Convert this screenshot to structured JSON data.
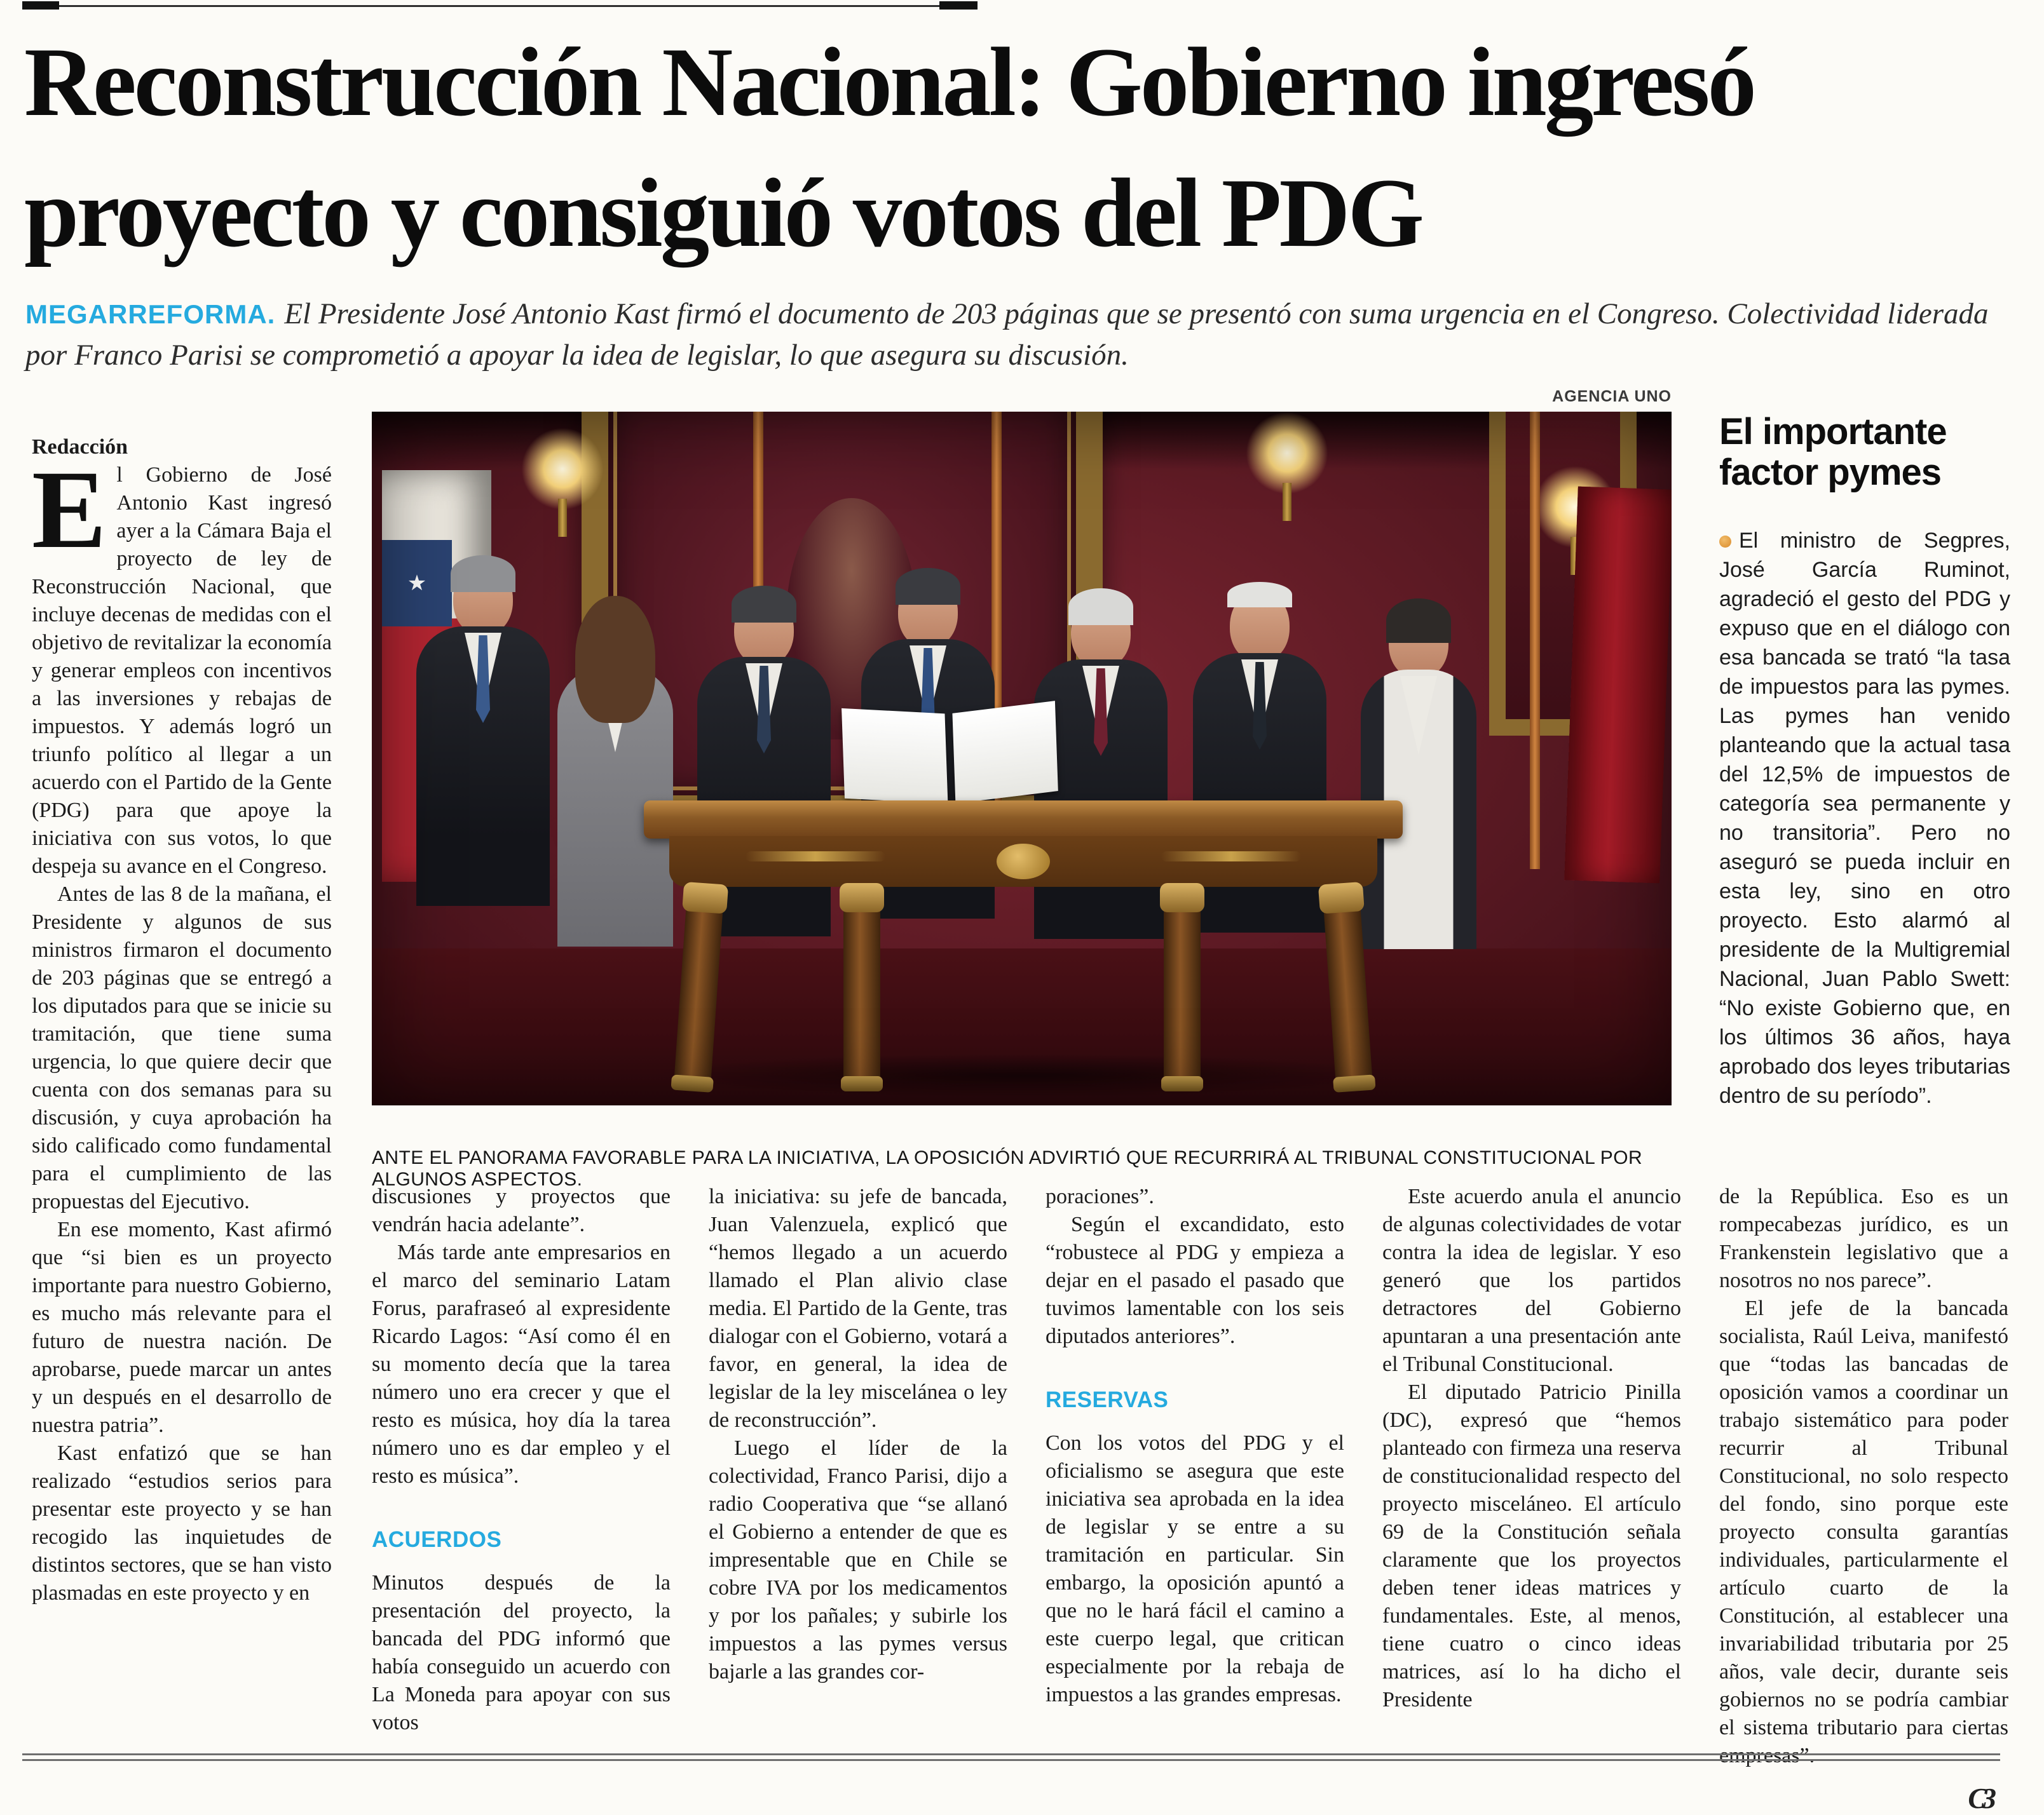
{
  "headline": {
    "text": "Reconstrucción Nacional: Gobierno ingresó proyecto y consiguió votos del PDG"
  },
  "standfirst": {
    "kicker": "MEGARREFORMA.",
    "text": "El Presidente José Antonio Kast firmó el documento de 203 páginas que se presentó con suma urgencia en el Congreso. Colectividad liderada por Franco Parisi se comprometió a apoyar la idea de legislar, lo que asegura su discusión."
  },
  "article": {
    "byline": "Redacción",
    "col1": {
      "dropcap": "E",
      "p1": "l Gobierno de José Antonio Kast ingresó ayer a la Cámara Baja el proyecto de ley de Reconstrucción Nacional, que incluye decenas de medidas con el objetivo de revitalizar la economía y generar empleos con incentivos a las inversiones y rebajas de impuestos. Y además logró un triunfo político al llegar a un acuerdo con el Partido de la Gente (PDG) para que apoye la iniciativa con sus votos, lo que despeja su avance en el Congreso.",
      "p2": "Antes de las 8 de la mañana, el Presidente y algunos de sus ministros firmaron el documento de 203 páginas que se entregó a los diputados para que se inicie su tramitación, que tiene suma urgencia, lo que quiere decir que cuenta con dos semanas para su discusión, y cuya aprobación ha sido calificado como fundamental para el cumplimiento de las propuestas del Ejecutivo.",
      "p3": "En ese momento, Kast afirmó que “si bien es un proyecto importante para nuestro Gobierno, es mucho más relevante para el futuro de nuestra nación. De aprobarse, puede marcar un antes y un después en el desarrollo de nuestra patria”.",
      "p4": "Kast enfatizó que se han realizado “estudios serios para presentar este proyecto y se han recogido las inquietudes de distintos sectores, que se han visto plasmadas en este proyecto y en"
    },
    "col2": {
      "p1": "discusiones y proyectos que vendrán hacia adelante”.",
      "p2": "Más tarde ante empresarios en el marco del seminario Latam Forus, parafraseó al expresidente Ricardo Lagos: “Así como él en su momento decía que la tarea número uno era crecer y que el resto es música, hoy día la tarea número uno es dar empleo y el resto es música”.",
      "subhead": "ACUERDOS",
      "p3": "Minutos después de la presentación del proyecto, la bancada del PDG informó que había conseguido un acuerdo con La Moneda para apoyar con sus votos"
    },
    "col3": {
      "p1": "la iniciativa: su jefe de bancada, Juan Valenzuela, explicó que “hemos llegado a un acuerdo llamado el Plan alivio clase media. El Partido de la Gente, tras dialogar con el Gobierno, votará a favor, en general, la idea de legislar de la ley miscelánea o ley de reconstrucción”.",
      "p2": "Luego el líder de la colectividad, Franco Parisi, dijo a radio Cooperativa que “se allanó el Gobierno a entender de que es impresentable que en Chile se cobre IVA por los medicamentos y por los pañales; y subirle los impuestos a las pymes versus bajarle a las grandes cor-"
    },
    "col4": {
      "p1": "poraciones”.",
      "p2": "Según el excandidato, esto “robustece al PDG y empieza a dejar en el pasado el pasado que tuvimos lamentable con los seis diputados anteriores”.",
      "subhead": "RESERVAS",
      "p3": "Con los votos del PDG y el oficialismo se asegura que este iniciativa sea aprobada en la idea de legislar y se entre a su tramitación en particular. Sin embargo, la oposición apuntó a que no le hará fácil el camino a este cuerpo legal, que critican especialmente por la rebaja de impuestos a las grandes empresas."
    },
    "col5": {
      "p1": "Este acuerdo anula el anuncio de algunas colectividades de votar contra la idea de legislar. Y eso generó que los partidos detractores del Gobierno apuntaran a una presentación ante el Tribunal Constitucional.",
      "p2": "El diputado Patricio Pinilla (DC), expresó que “hemos planteado con firmeza una reserva de constitucionalidad respecto del proyecto misceláneo. El artículo 69 de la Constitución señala claramente que los proyectos deben tener ideas matrices y fundamentales. Este, al menos, tiene cuatro o cinco ideas matrices, así lo ha dicho el Presidente"
    },
    "col6": {
      "p1": "de la República. Eso es un rompecabezas jurídico, es un Frankenstein legislativo que a nosotros no nos parece”.",
      "p2": "El jefe de la bancada socialista, Raúl Leiva, manifestó que “todas las bancadas de oposición vamos a coordinar un trabajo sistemático para poder recurrir al Tribunal Constitucional, no solo respecto del fondo, sino porque este proyecto consulta garantías individuales, particularmente el artículo cuarto de la Constitución, al establecer una invariabilidad tributaria por 25 años, vale decir, durante seis gobiernos no se podría cambiar el sistema tributario para ciertas empresas”."
    },
    "end_mark": "C3"
  },
  "photo": {
    "credit": "AGENCIA UNO",
    "caption": "ANTE EL PANORAMA FAVORABLE PARA LA INICIATIVA, LA OPOSICIÓN ADVIRTIÓ QUE RECURRIRÁ AL TRIBUNAL CONSTITUCIONAL POR ALGUNOS ASPECTOS.",
    "flag_star": "★"
  },
  "sidebar": {
    "title": "El importante factor pymes",
    "body": "El ministro de Segpres, José García Ruminot, agradeció el gesto del PDG y expuso que en el diálogo con esa bancada se trató “la tasa de impuestos para las pymes. Las pymes han venido planteando que la actual tasa del 12,5% de impuestos de categoría sea permanente y no transitoria”. Pero no aseguró se pueda incluir en esta ley, sino en otro proyecto. Esto alarmó al presidente de la Multigremial Nacional, Juan Pablo Swett: “No existe Gobierno que, en los últimos 36 años, haya aprobado dos leyes tributarias dentro de su período”."
  },
  "colors": {
    "accent_cyan": "#25aadf",
    "bullet_orange": "#d98a2b",
    "photo_maroon": "#5d1a24"
  }
}
